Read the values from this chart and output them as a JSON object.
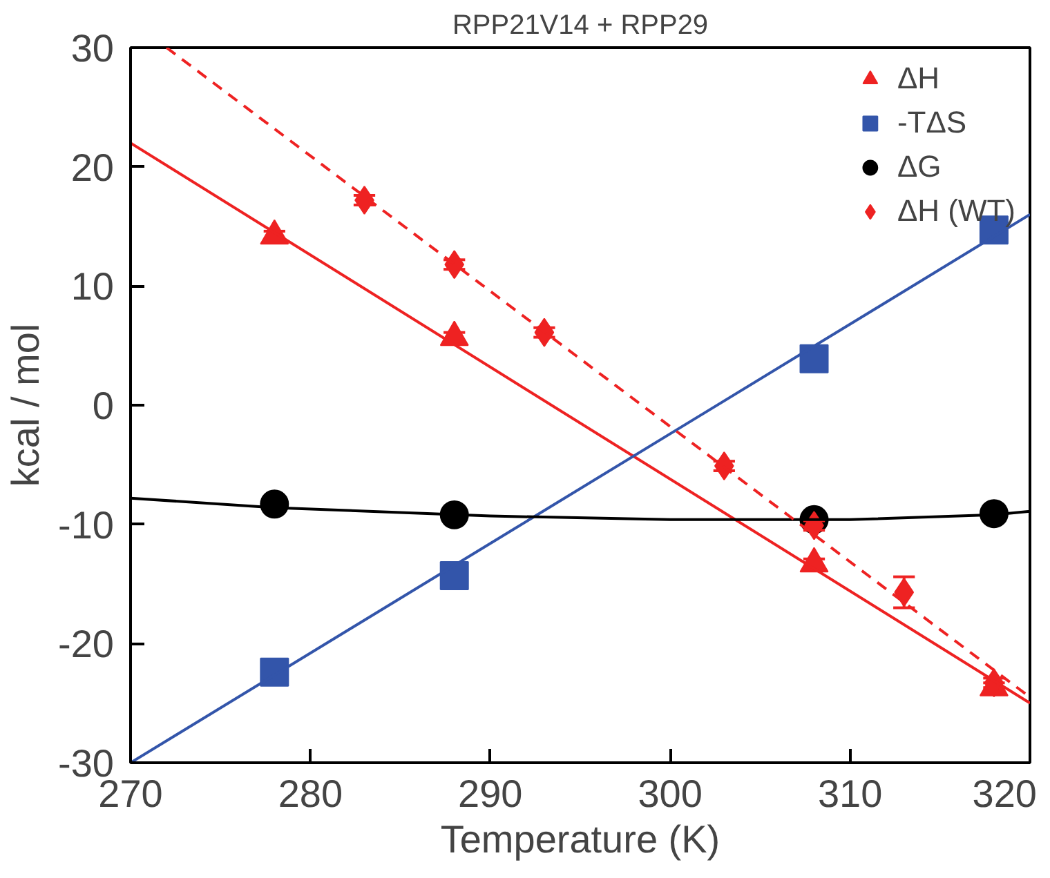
{
  "chart_data": {
    "type": "scatter",
    "title": "RPP21V14 + RPP29",
    "xlabel": "Temperature (K)",
    "ylabel": "kcal / mol",
    "xlim": [
      270,
      320
    ],
    "ylim": [
      -30,
      30
    ],
    "xticks": [
      270,
      280,
      290,
      300,
      310,
      320
    ],
    "yticks": [
      -30,
      -20,
      -10,
      0,
      10,
      20,
      30
    ],
    "grid": false,
    "legend": "top right",
    "series": [
      {
        "name": "ΔH",
        "color": "#ee2222",
        "marker": "triangle",
        "x": [
          278,
          288,
          308,
          318
        ],
        "values": [
          14.2,
          5.7,
          -13.3,
          -23.7
        ],
        "errors": [
          0.4,
          0.4,
          0.4,
          0.4
        ]
      },
      {
        "name": "-TΔS",
        "color": "#3355aa",
        "marker": "square",
        "x": [
          278,
          288,
          308,
          318
        ],
        "values": [
          -22.4,
          -14.3,
          3.9,
          14.7
        ],
        "errors": [
          0.4,
          0.4,
          0.4,
          0.4
        ]
      },
      {
        "name": "ΔG",
        "color": "#000000",
        "marker": "circle",
        "x": [
          278,
          288,
          308,
          318
        ],
        "values": [
          -8.3,
          -9.2,
          -9.6,
          -9.1
        ]
      },
      {
        "name": "ΔH (WT)",
        "color": "#ee2222",
        "marker": "diamond",
        "x": [
          283,
          288,
          293,
          303,
          308,
          313,
          318
        ],
        "values": [
          17.2,
          11.8,
          6.1,
          -5.1,
          -10.1,
          -15.7,
          -23.3
        ],
        "errors": [
          0.4,
          0.4,
          0.4,
          0.4,
          0.4,
          1.3,
          0.4
        ]
      },
      {
        "type": "line",
        "color": "#ee2222",
        "line_style": "solid",
        "x": [
          270,
          320
        ],
        "values": [
          22,
          -25
        ]
      },
      {
        "type": "line",
        "color": "#3355aa",
        "line_style": "solid",
        "x": [
          270,
          320
        ],
        "values": [
          -30,
          16
        ]
      },
      {
        "type": "line",
        "color": "#000000",
        "line_style": "solid",
        "x": [
          270,
          278,
          290,
          300,
          310,
          318,
          320
        ],
        "values": [
          -7.8,
          -8.6,
          -9.3,
          -9.6,
          -9.6,
          -9.2,
          -8.9
        ]
      },
      {
        "type": "line",
        "color": "#ee2222",
        "line_style": "dashed",
        "x": [
          272,
          320
        ],
        "values": [
          30,
          -24.5
        ]
      }
    ]
  }
}
